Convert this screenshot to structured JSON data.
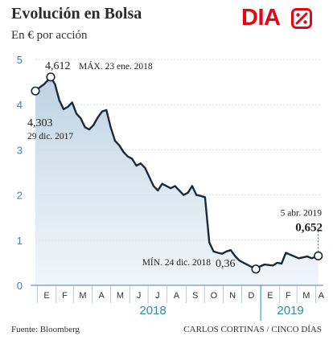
{
  "title": "Evolución en Bolsa",
  "subtitle": "En € por acción",
  "logo": {
    "text": "DIA",
    "symbol": "%",
    "color": "#e30613"
  },
  "source": "Fuente:  Bloomberg",
  "credit": "CARLOS CORTINAS / CINCO DÍAS",
  "colors": {
    "line": "#1b2a3a",
    "area": "#c9d9e6",
    "axis": "#4a7ca0",
    "year": "#2a8fa5"
  },
  "chart_data": {
    "type": "area",
    "ylim": [
      0,
      5
    ],
    "yticks": [
      "0",
      "1",
      "2",
      "3",
      "4",
      "5"
    ],
    "month_ticks": [
      "E",
      "F",
      "M",
      "A",
      "M",
      "J",
      "J",
      "A",
      "S",
      "O",
      "N",
      "D",
      "E",
      "F",
      "M",
      "A"
    ],
    "years": [
      "2018",
      "2019"
    ],
    "x": [
      "2017-12-29",
      "2018-01-05",
      "2018-01-12",
      "2018-01-19",
      "2018-01-23",
      "2018-01-30",
      "2018-02-06",
      "2018-02-13",
      "2018-02-20",
      "2018-02-27",
      "2018-03-06",
      "2018-03-13",
      "2018-03-20",
      "2018-03-27",
      "2018-04-03",
      "2018-04-10",
      "2018-04-17",
      "2018-04-24",
      "2018-05-01",
      "2018-05-08",
      "2018-05-15",
      "2018-05-22",
      "2018-05-29",
      "2018-06-05",
      "2018-06-12",
      "2018-06-19",
      "2018-06-26",
      "2018-07-03",
      "2018-07-10",
      "2018-07-17",
      "2018-07-24",
      "2018-07-31",
      "2018-08-07",
      "2018-08-14",
      "2018-08-21",
      "2018-08-28",
      "2018-09-04",
      "2018-09-11",
      "2018-09-18",
      "2018-09-25",
      "2018-10-02",
      "2018-10-09",
      "2018-10-16",
      "2018-10-23",
      "2018-10-30",
      "2018-11-06",
      "2018-11-13",
      "2018-11-20",
      "2018-11-27",
      "2018-12-04",
      "2018-12-11",
      "2018-12-18",
      "2018-12-24",
      "2018-12-31",
      "2019-01-07",
      "2019-01-14",
      "2019-01-21",
      "2019-01-28",
      "2019-02-04",
      "2019-02-11",
      "2019-02-18",
      "2019-02-25",
      "2019-03-04",
      "2019-03-11",
      "2019-03-18",
      "2019-03-25",
      "2019-04-01",
      "2019-04-05"
    ],
    "values": [
      4.303,
      4.38,
      4.45,
      4.55,
      4.612,
      4.45,
      4.1,
      3.9,
      3.95,
      4.05,
      3.8,
      3.7,
      3.5,
      3.45,
      3.55,
      3.72,
      3.85,
      3.88,
      3.5,
      3.2,
      3.1,
      2.95,
      2.85,
      2.8,
      2.65,
      2.7,
      2.6,
      2.4,
      2.2,
      2.1,
      2.25,
      2.2,
      2.15,
      2.2,
      2.1,
      2.0,
      2.05,
      2.2,
      2.0,
      1.98,
      1.95,
      0.95,
      0.75,
      0.72,
      0.7,
      0.75,
      0.78,
      0.65,
      0.55,
      0.5,
      0.45,
      0.4,
      0.36,
      0.42,
      0.46,
      0.45,
      0.44,
      0.5,
      0.48,
      0.72,
      0.68,
      0.64,
      0.6,
      0.62,
      0.64,
      0.6,
      0.63,
      0.652
    ],
    "annotations": {
      "start": {
        "value": "4,303",
        "label": "29 dic. 2017"
      },
      "max": {
        "value": "4,612",
        "label": "MÁX. 23 ene. 2018"
      },
      "min": {
        "value": "0,36",
        "label": "MÍN. 24 dic. 2018"
      },
      "end": {
        "value": "0,652",
        "label": "5 abr. 2019"
      }
    }
  }
}
